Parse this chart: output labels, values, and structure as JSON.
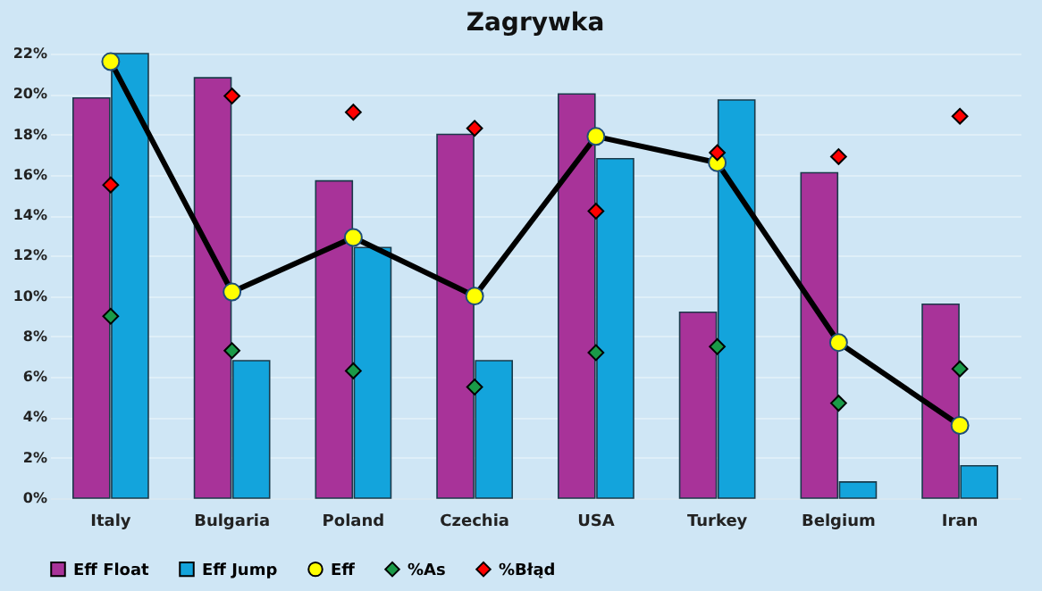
{
  "chart_data": {
    "type": "bar",
    "title": "Zagrywka",
    "categories": [
      "Italy",
      "Bulgaria",
      "Poland",
      "Czechia",
      "USA",
      "Turkey",
      "Belgium",
      "Iran"
    ],
    "series": [
      {
        "name": "Eff Float",
        "type": "bar",
        "color": "#a83399",
        "values": [
          19.8,
          20.8,
          15.7,
          18.0,
          20.0,
          9.2,
          16.1,
          9.6
        ]
      },
      {
        "name": "Eff Jump",
        "type": "bar",
        "color": "#13a4dc",
        "values": [
          22.0,
          6.8,
          12.4,
          6.8,
          16.8,
          19.7,
          0.8,
          1.6
        ]
      },
      {
        "name": "Eff",
        "type": "line",
        "color": "#ffff00",
        "marker": "circle",
        "values": [
          21.6,
          10.2,
          12.9,
          10.0,
          17.9,
          16.6,
          7.7,
          3.6
        ]
      },
      {
        "name": "%As",
        "type": "scatter",
        "color": "#1a9a48",
        "marker": "diamond",
        "values": [
          9.0,
          7.3,
          6.3,
          5.5,
          7.2,
          7.5,
          4.7,
          6.4
        ]
      },
      {
        "name": "%Błąd",
        "type": "scatter",
        "color": "#ff0000",
        "marker": "diamond",
        "values": [
          15.5,
          19.9,
          19.1,
          18.3,
          14.2,
          17.1,
          16.9,
          18.9
        ]
      }
    ],
    "ylim": [
      0,
      22
    ],
    "yticks": [
      {
        "value": 0,
        "label": "0%"
      },
      {
        "value": 2,
        "label": "2%"
      },
      {
        "value": 4,
        "label": "4%"
      },
      {
        "value": 6,
        "label": "6%"
      },
      {
        "value": 8,
        "label": "8%"
      },
      {
        "value": 10,
        "label": "10%"
      },
      {
        "value": 12,
        "label": "12%"
      },
      {
        "value": 14,
        "label": "14%"
      },
      {
        "value": 16,
        "label": "16%"
      },
      {
        "value": 18,
        "label": "18%"
      },
      {
        "value": 20,
        "label": "20%"
      },
      {
        "value": 22,
        "label": "22%"
      }
    ],
    "grid": "y",
    "legend": "bottom"
  }
}
